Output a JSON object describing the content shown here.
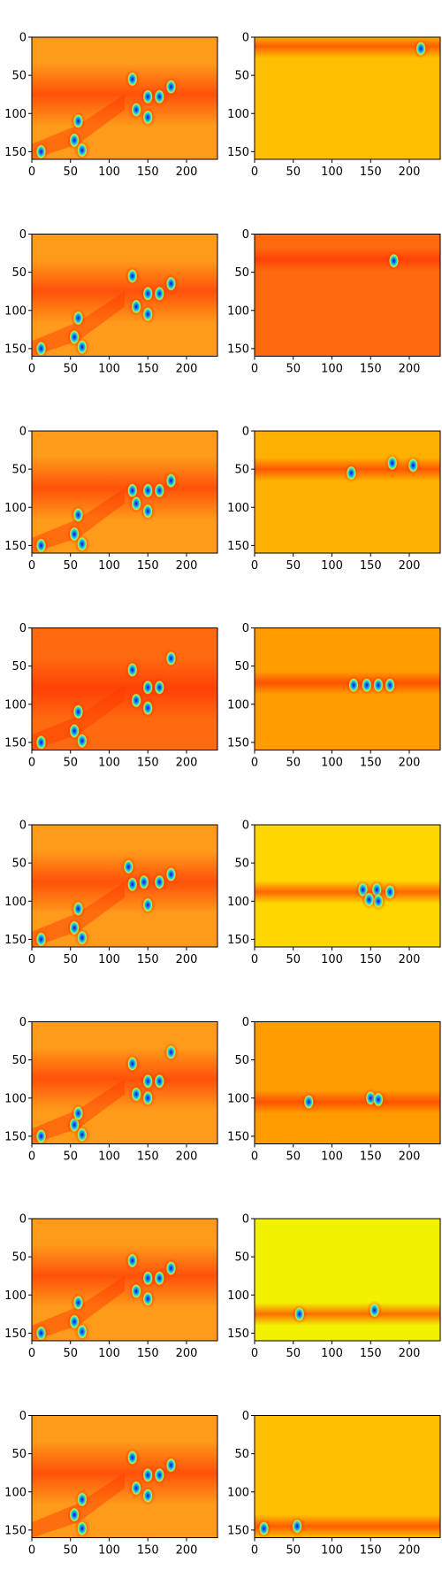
{
  "figure": {
    "rows": 8,
    "cols": 2,
    "colormap": "jet",
    "image_extent": {
      "x": [
        0,
        240
      ],
      "y": [
        160,
        0
      ]
    }
  },
  "chart_data": [
    {
      "type": "heatmap",
      "row": 1,
      "col": 1,
      "panel": "left",
      "colormap": "jet",
      "background": "#ff9a1a",
      "band_center_y": 75,
      "blobs": [
        [
          130,
          55
        ],
        [
          150,
          78
        ],
        [
          165,
          78
        ],
        [
          150,
          105
        ],
        [
          135,
          95
        ],
        [
          180,
          65
        ],
        [
          55,
          135
        ],
        [
          60,
          110
        ],
        [
          12,
          150
        ],
        [
          65,
          148
        ]
      ],
      "xticks": [
        0,
        50,
        100,
        150,
        200
      ],
      "yticks": [
        0,
        50,
        100,
        150
      ],
      "xlim": [
        0,
        240
      ],
      "ylim": [
        160,
        0
      ]
    },
    {
      "type": "heatmap",
      "row": 1,
      "col": 2,
      "panel": "right",
      "colormap": "jet",
      "background": "#ffbf00",
      "band_center_y": 12,
      "blobs": [
        [
          215,
          15
        ]
      ],
      "xticks": [
        0,
        50,
        100,
        150,
        200
      ],
      "yticks": [
        0,
        50,
        100,
        150
      ],
      "xlim": [
        0,
        240
      ],
      "ylim": [
        160,
        0
      ]
    },
    {
      "type": "heatmap",
      "row": 2,
      "col": 1,
      "panel": "left",
      "colormap": "jet",
      "background": "#ff9a1a",
      "band_center_y": 75,
      "blobs": [
        [
          130,
          55
        ],
        [
          150,
          78
        ],
        [
          165,
          78
        ],
        [
          150,
          105
        ],
        [
          135,
          95
        ],
        [
          180,
          65
        ],
        [
          55,
          135
        ],
        [
          60,
          110
        ],
        [
          12,
          150
        ],
        [
          65,
          148
        ]
      ],
      "xticks": [
        0,
        50,
        100,
        150,
        200
      ],
      "yticks": [
        0,
        50,
        100,
        150
      ],
      "xlim": [
        0,
        240
      ],
      "ylim": [
        160,
        0
      ]
    },
    {
      "type": "heatmap",
      "row": 2,
      "col": 2,
      "panel": "right",
      "colormap": "jet",
      "background": "#ff6a10",
      "band_center_y": 33,
      "blobs": [
        [
          180,
          35
        ]
      ],
      "xticks": [
        0,
        50,
        100,
        150,
        200
      ],
      "yticks": [
        0,
        50,
        100,
        150
      ],
      "xlim": [
        0,
        240
      ],
      "ylim": [
        160,
        0
      ]
    },
    {
      "type": "heatmap",
      "row": 3,
      "col": 1,
      "panel": "left",
      "colormap": "jet",
      "background": "#ff9a1a",
      "band_center_y": 75,
      "blobs": [
        [
          130,
          78
        ],
        [
          150,
          78
        ],
        [
          165,
          78
        ],
        [
          150,
          105
        ],
        [
          135,
          95
        ],
        [
          180,
          65
        ],
        [
          55,
          135
        ],
        [
          60,
          110
        ],
        [
          12,
          150
        ],
        [
          65,
          148
        ]
      ],
      "xticks": [
        0,
        50,
        100,
        150,
        200
      ],
      "yticks": [
        0,
        50,
        100,
        150
      ],
      "xlim": [
        0,
        240
      ],
      "ylim": [
        160,
        0
      ]
    },
    {
      "type": "heatmap",
      "row": 3,
      "col": 2,
      "panel": "right",
      "colormap": "jet",
      "background": "#ffb000",
      "band_center_y": 50,
      "blobs": [
        [
          125,
          55
        ],
        [
          178,
          42
        ],
        [
          205,
          45
        ]
      ],
      "xticks": [
        0,
        50,
        100,
        150,
        200
      ],
      "yticks": [
        0,
        50,
        100,
        150
      ],
      "xlim": [
        0,
        240
      ],
      "ylim": [
        160,
        0
      ]
    },
    {
      "type": "heatmap",
      "row": 4,
      "col": 1,
      "panel": "left",
      "colormap": "jet",
      "background": "#ff6a10",
      "band_center_y": 80,
      "blobs": [
        [
          130,
          55
        ],
        [
          150,
          78
        ],
        [
          165,
          78
        ],
        [
          150,
          105
        ],
        [
          135,
          95
        ],
        [
          180,
          40
        ],
        [
          55,
          135
        ],
        [
          60,
          110
        ],
        [
          12,
          150
        ],
        [
          65,
          148
        ]
      ],
      "xticks": [
        0,
        50,
        100,
        150,
        200
      ],
      "yticks": [
        0,
        50,
        100,
        150
      ],
      "xlim": [
        0,
        240
      ],
      "ylim": [
        160,
        0
      ]
    },
    {
      "type": "heatmap",
      "row": 4,
      "col": 2,
      "panel": "right",
      "colormap": "jet",
      "background": "#ff9c00",
      "band_center_y": 72,
      "blobs": [
        [
          128,
          75
        ],
        [
          145,
          75
        ],
        [
          160,
          75
        ],
        [
          175,
          75
        ]
      ],
      "xticks": [
        0,
        50,
        100,
        150,
        200
      ],
      "yticks": [
        0,
        50,
        100,
        150
      ],
      "xlim": [
        0,
        240
      ],
      "ylim": [
        160,
        0
      ]
    },
    {
      "type": "heatmap",
      "row": 5,
      "col": 1,
      "panel": "left",
      "colormap": "jet",
      "background": "#ff9a1a",
      "band_center_y": 75,
      "blobs": [
        [
          125,
          55
        ],
        [
          145,
          75
        ],
        [
          165,
          75
        ],
        [
          150,
          105
        ],
        [
          130,
          78
        ],
        [
          180,
          65
        ],
        [
          55,
          135
        ],
        [
          60,
          110
        ],
        [
          12,
          150
        ],
        [
          65,
          148
        ]
      ],
      "xticks": [
        0,
        50,
        100,
        150,
        200
      ],
      "yticks": [
        0,
        50,
        100,
        150
      ],
      "xlim": [
        0,
        240
      ],
      "ylim": [
        160,
        0
      ]
    },
    {
      "type": "heatmap",
      "row": 5,
      "col": 2,
      "panel": "right",
      "colormap": "jet",
      "background": "#ffd700",
      "band_center_y": 88,
      "blobs": [
        [
          140,
          85
        ],
        [
          158,
          85
        ],
        [
          175,
          88
        ],
        [
          160,
          100
        ],
        [
          148,
          98
        ]
      ],
      "xticks": [
        0,
        50,
        100,
        150,
        200
      ],
      "yticks": [
        0,
        50,
        100,
        150
      ],
      "xlim": [
        0,
        240
      ],
      "ylim": [
        160,
        0
      ]
    },
    {
      "type": "heatmap",
      "row": 6,
      "col": 1,
      "panel": "left",
      "colormap": "jet",
      "background": "#ff9a1a",
      "band_center_y": 75,
      "blobs": [
        [
          130,
          55
        ],
        [
          150,
          78
        ],
        [
          165,
          78
        ],
        [
          150,
          100
        ],
        [
          135,
          95
        ],
        [
          180,
          40
        ],
        [
          55,
          135
        ],
        [
          60,
          120
        ],
        [
          12,
          150
        ],
        [
          65,
          148
        ]
      ],
      "xticks": [
        0,
        50,
        100,
        150,
        200
      ],
      "yticks": [
        0,
        50,
        100,
        150
      ],
      "xlim": [
        0,
        240
      ],
      "ylim": [
        160,
        0
      ]
    },
    {
      "type": "heatmap",
      "row": 6,
      "col": 2,
      "panel": "right",
      "colormap": "jet",
      "background": "#ff9c00",
      "band_center_y": 105,
      "blobs": [
        [
          70,
          105
        ],
        [
          150,
          100
        ],
        [
          160,
          102
        ]
      ],
      "xticks": [
        0,
        50,
        100,
        150,
        200
      ],
      "yticks": [
        0,
        50,
        100,
        150
      ],
      "xlim": [
        0,
        240
      ],
      "ylim": [
        160,
        0
      ]
    },
    {
      "type": "heatmap",
      "row": 7,
      "col": 1,
      "panel": "left",
      "colormap": "jet",
      "background": "#ff9a1a",
      "band_center_y": 75,
      "blobs": [
        [
          130,
          55
        ],
        [
          150,
          78
        ],
        [
          165,
          78
        ],
        [
          150,
          105
        ],
        [
          135,
          95
        ],
        [
          180,
          65
        ],
        [
          55,
          135
        ],
        [
          60,
          110
        ],
        [
          12,
          150
        ],
        [
          65,
          148
        ]
      ],
      "xticks": [
        0,
        50,
        100,
        150,
        200
      ],
      "yticks": [
        0,
        50,
        100,
        150
      ],
      "xlim": [
        0,
        240
      ],
      "ylim": [
        160,
        0
      ]
    },
    {
      "type": "heatmap",
      "row": 7,
      "col": 2,
      "panel": "right",
      "colormap": "jet",
      "background": "#f2f200",
      "band_center_y": 125,
      "blobs": [
        [
          58,
          125
        ],
        [
          155,
          120
        ]
      ],
      "xticks": [
        0,
        50,
        100,
        150,
        200
      ],
      "yticks": [
        0,
        50,
        100,
        150
      ],
      "xlim": [
        0,
        240
      ],
      "ylim": [
        160,
        0
      ]
    },
    {
      "type": "heatmap",
      "row": 8,
      "col": 1,
      "panel": "left",
      "colormap": "jet",
      "background": "#ff9a1a",
      "band_center_y": 75,
      "blobs": [
        [
          130,
          55
        ],
        [
          150,
          78
        ],
        [
          165,
          78
        ],
        [
          150,
          105
        ],
        [
          135,
          95
        ],
        [
          180,
          65
        ],
        [
          55,
          130
        ],
        [
          65,
          110
        ],
        [
          65,
          148
        ]
      ],
      "xticks": [
        0,
        50,
        100,
        150,
        200
      ],
      "yticks": [
        0,
        50,
        100,
        150
      ],
      "xlim": [
        0,
        240
      ],
      "ylim": [
        160,
        0
      ]
    },
    {
      "type": "heatmap",
      "row": 8,
      "col": 2,
      "panel": "right",
      "colormap": "jet",
      "background": "#ffbf00",
      "band_center_y": 145,
      "blobs": [
        [
          12,
          148
        ],
        [
          55,
          145
        ]
      ],
      "xticks": [
        0,
        50,
        100,
        150,
        200
      ],
      "yticks": [
        0,
        50,
        100,
        150
      ],
      "xlim": [
        0,
        240
      ],
      "ylim": [
        160,
        0
      ]
    }
  ]
}
